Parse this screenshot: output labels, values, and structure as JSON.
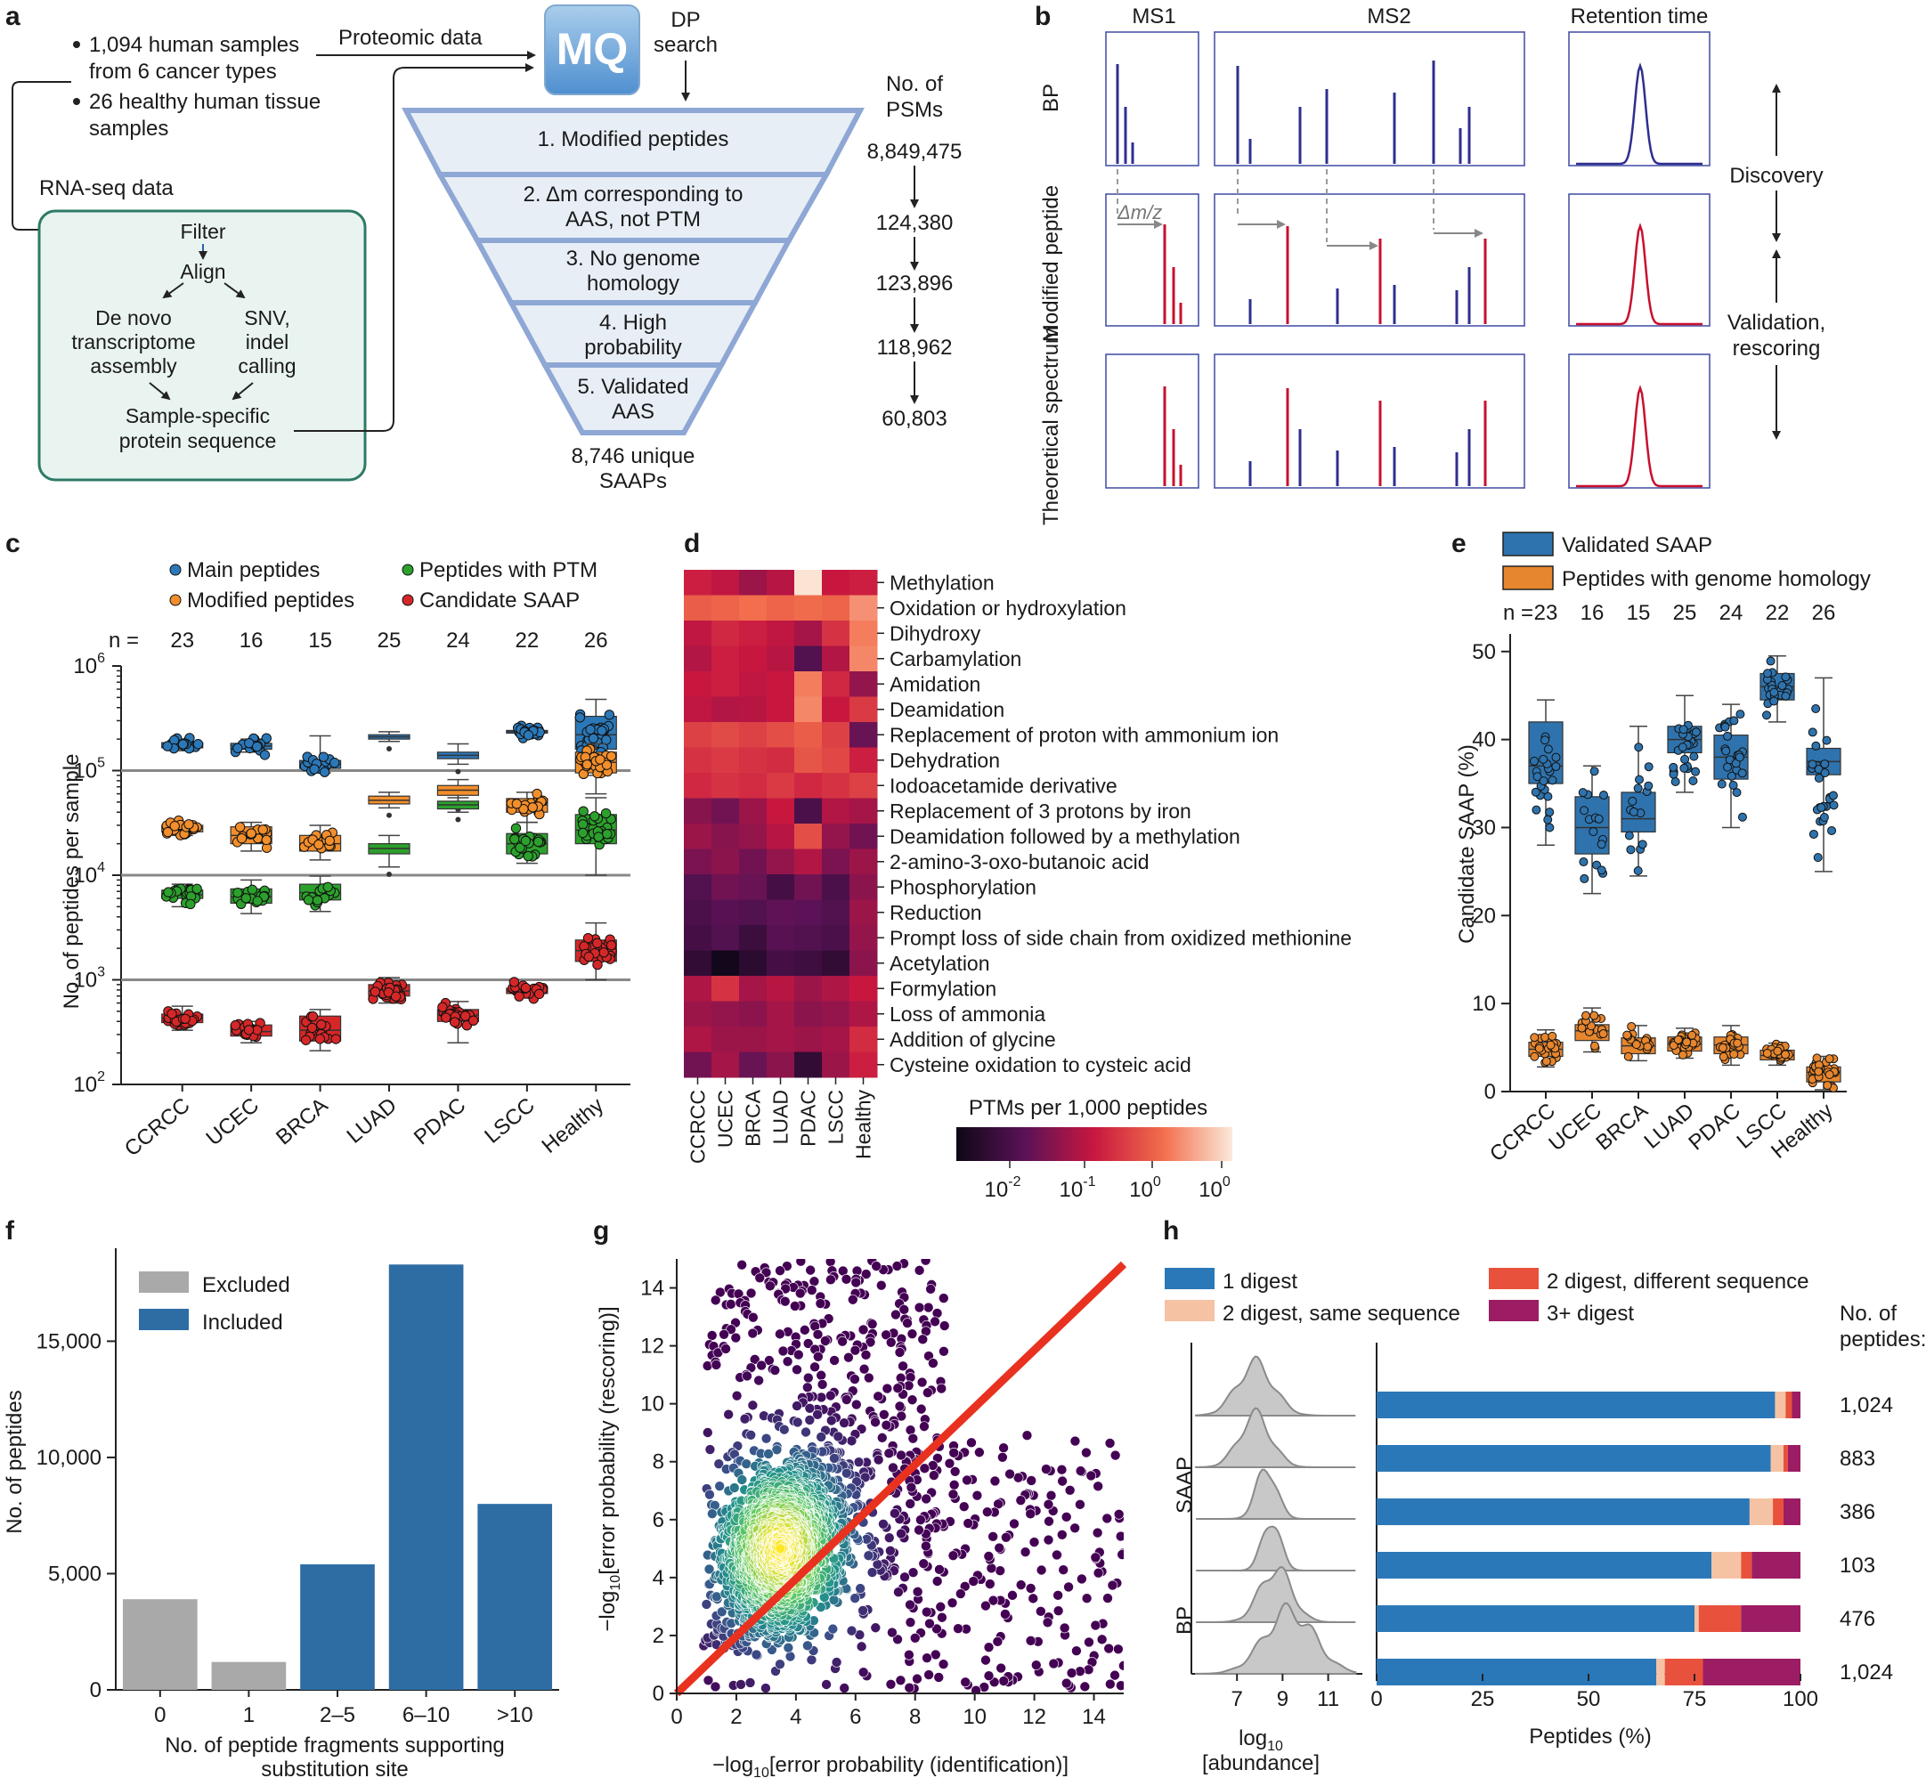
{
  "panel_letters": [
    "a",
    "b",
    "c",
    "d",
    "e",
    "f",
    "g",
    "h"
  ],
  "a": {
    "bullets": [
      "1,094 human samples",
      "from 6 cancer types",
      "26 healthy human tissue",
      "samples"
    ],
    "proteomic": "Proteomic data",
    "rnaseq": "RNA-seq data",
    "mq": "MQ",
    "dp": [
      "DP",
      "search"
    ],
    "pipeline": [
      "Filter",
      "Align",
      "De novo",
      "transcriptome",
      "assembly",
      "SNV,",
      "indel",
      "calling",
      "Sample-specific",
      "protein sequence"
    ],
    "psm_header": [
      "No. of",
      "PSMs"
    ],
    "funnel": [
      "1. Modified peptides",
      "2. Δm corresponding to",
      "AAS, not PTM",
      "3. No genome",
      "homology",
      "4. High",
      "probability",
      "5. Validated",
      "AAS"
    ],
    "psm_counts": [
      "8,849,475",
      "124,380",
      "123,896",
      "118,962",
      "60,803"
    ],
    "bottom": [
      "8,746 unique",
      "SAAPs"
    ]
  },
  "b": {
    "cols": [
      "MS1",
      "MS2",
      "Retention time"
    ],
    "rows": [
      "BP",
      "Modified peptide",
      "Theoretical spectrum"
    ],
    "dmz": "Δm/z",
    "side": [
      "Discovery",
      "Validation,",
      "rescoring"
    ],
    "colors": {
      "blue": "#2e2f8f",
      "red": "#c8102e",
      "frame": "#4a55a8"
    }
  },
  "chart_data": [
    {
      "id": "c",
      "type": "box",
      "legend": [
        {
          "name": "Main peptides",
          "color": "#2b78b8"
        },
        {
          "name": "Peptides with PTM",
          "color": "#2ca02c"
        },
        {
          "name": "Modified peptides",
          "color": "#f28e2b"
        },
        {
          "name": "Candidate SAAP",
          "color": "#d62728"
        }
      ],
      "categories": [
        "CCRCC",
        "UCEC",
        "BRCA",
        "LUAD",
        "PDAC",
        "LSCC",
        "Healthy"
      ],
      "n": [
        "23",
        "16",
        "15",
        "25",
        "24",
        "22",
        "26"
      ],
      "n_label": "n =",
      "ylabel": "No. of peptides per sample",
      "yscale": "log",
      "ylim": [
        100,
        1000000
      ],
      "yticks": [
        "2",
        "3",
        "4",
        "5",
        "6"
      ],
      "hlines": [
        1000,
        10000,
        100000
      ],
      "series": [
        {
          "color": "#2b78b8",
          "med": [
            175000,
            172000,
            115000,
            210000,
            140000,
            235000,
            220000
          ],
          "q1": [
            165000,
            160000,
            105000,
            200000,
            130000,
            228000,
            160000
          ],
          "q3": [
            185000,
            182000,
            125000,
            220000,
            150000,
            242000,
            330000
          ],
          "lo": [
            155000,
            150000,
            95000,
            190000,
            115000,
            218000,
            90000
          ],
          "hi": [
            195000,
            200000,
            215000,
            235000,
            180000,
            250000,
            480000
          ],
          "dots": [
            1,
            1,
            1,
            0,
            0,
            1,
            1
          ]
        },
        {
          "color": "#f28e2b",
          "med": [
            28000,
            24000,
            20000,
            52000,
            65000,
            47000,
            120000
          ],
          "q1": [
            26000,
            20000,
            17000,
            48000,
            58000,
            40000,
            95000
          ],
          "q3": [
            30000,
            29000,
            24000,
            57000,
            72000,
            54000,
            150000
          ],
          "lo": [
            24000,
            17000,
            14000,
            44000,
            50000,
            32000,
            60000
          ],
          "hi": [
            32000,
            32000,
            30000,
            62000,
            82000,
            62000,
            180000
          ],
          "dots": [
            1,
            1,
            1,
            0,
            0,
            1,
            1
          ]
        },
        {
          "color": "#2ca02c",
          "med": [
            6500,
            6200,
            6800,
            18000,
            47000,
            20000,
            27000
          ],
          "q1": [
            6000,
            5400,
            5800,
            16000,
            43000,
            16000,
            20000
          ],
          "q3": [
            7200,
            7400,
            8200,
            20000,
            51000,
            25000,
            38000
          ],
          "lo": [
            5000,
            4300,
            4500,
            12000,
            40000,
            13000,
            10000
          ],
          "hi": [
            8200,
            9000,
            9800,
            24000,
            55000,
            32000,
            55000
          ],
          "dots": [
            1,
            1,
            1,
            0,
            0,
            1,
            1
          ]
        },
        {
          "color": "#d62728",
          "med": [
            430,
            320,
            330,
            780,
            460,
            780,
            1900
          ],
          "q1": [
            390,
            290,
            260,
            700,
            400,
            740,
            1500
          ],
          "q3": [
            470,
            370,
            450,
            900,
            520,
            830,
            2400
          ],
          "lo": [
            330,
            250,
            210,
            600,
            250,
            700,
            1000
          ],
          "hi": [
            560,
            400,
            520,
            1050,
            620,
            880,
            3500
          ],
          "dots": [
            1,
            1,
            1,
            1,
            1,
            1,
            1
          ]
        }
      ]
    },
    {
      "id": "d",
      "type": "heatmap",
      "categories": [
        "CCRCC",
        "UCEC",
        "BRCA",
        "LUAD",
        "PDAC",
        "LSCC",
        "Healthy"
      ],
      "rows": [
        "Methylation",
        "Oxidation or hydroxylation",
        "Dihydroxy",
        "Carbamylation",
        "Amidation",
        "Deamidation",
        "Replacement of proton with ammonium ion",
        "Dehydration",
        "Iodoacetamide derivative",
        "Replacement of 3 protons by iron",
        "Deamidation followed by a methylation",
        "2-amino-3-oxo-butanoic acid",
        "Phosphorylation",
        "Reduction",
        "Prompt loss of side chain from oxidized methionine",
        "Acetylation",
        "Formylation",
        "Loss of ammonia",
        "Addition of glycine",
        "Cysteine oxidation to cysteic acid"
      ],
      "values": [
        [
          0.52,
          0.48,
          0.4,
          0.46,
          0.99,
          0.5,
          0.52
        ],
        [
          0.7,
          0.72,
          0.75,
          0.72,
          0.74,
          0.72,
          0.82
        ],
        [
          0.48,
          0.55,
          0.52,
          0.48,
          0.42,
          0.58,
          0.78
        ],
        [
          0.45,
          0.52,
          0.5,
          0.46,
          0.22,
          0.45,
          0.8
        ],
        [
          0.5,
          0.52,
          0.48,
          0.5,
          0.78,
          0.55,
          0.38
        ],
        [
          0.48,
          0.45,
          0.46,
          0.5,
          0.8,
          0.5,
          0.6
        ],
        [
          0.62,
          0.65,
          0.62,
          0.66,
          0.7,
          0.62,
          0.28
        ],
        [
          0.58,
          0.6,
          0.58,
          0.56,
          0.68,
          0.64,
          0.52
        ],
        [
          0.55,
          0.58,
          0.56,
          0.6,
          0.55,
          0.58,
          0.62
        ],
        [
          0.35,
          0.3,
          0.4,
          0.5,
          0.2,
          0.45,
          0.42
        ],
        [
          0.4,
          0.35,
          0.38,
          0.46,
          0.66,
          0.38,
          0.3
        ],
        [
          0.32,
          0.36,
          0.3,
          0.38,
          0.45,
          0.32,
          0.4
        ],
        [
          0.22,
          0.3,
          0.28,
          0.18,
          0.3,
          0.2,
          0.36
        ],
        [
          0.2,
          0.24,
          0.22,
          0.26,
          0.25,
          0.22,
          0.4
        ],
        [
          0.18,
          0.22,
          0.15,
          0.24,
          0.22,
          0.2,
          0.38
        ],
        [
          0.12,
          0.02,
          0.1,
          0.18,
          0.16,
          0.12,
          0.36
        ],
        [
          0.44,
          0.58,
          0.42,
          0.46,
          0.4,
          0.44,
          0.5
        ],
        [
          0.4,
          0.38,
          0.36,
          0.42,
          0.36,
          0.38,
          0.44
        ],
        [
          0.44,
          0.4,
          0.4,
          0.42,
          0.4,
          0.42,
          0.56
        ],
        [
          0.3,
          0.42,
          0.28,
          0.36,
          0.12,
          0.4,
          0.52
        ]
      ],
      "colorbar_label": "PTMs per 1,000 peptides",
      "colorbar_ticks": [
        "-2",
        "-1",
        "0",
        "0"
      ]
    },
    {
      "id": "e",
      "type": "box",
      "legend": [
        {
          "name": "Validated SAAP",
          "color": "#2e73ad"
        },
        {
          "name": "Peptides with genome homology",
          "color": "#e6862e"
        }
      ],
      "categories": [
        "CCRCC",
        "UCEC",
        "BRCA",
        "LUAD",
        "PDAC",
        "LSCC",
        "Healthy"
      ],
      "n": [
        "23",
        "16",
        "15",
        "25",
        "24",
        "22",
        "26"
      ],
      "n_label": "n =",
      "ylabel": "Candidate SAAP (%)",
      "ylim": [
        0,
        52
      ],
      "yticks": [
        0,
        10,
        20,
        30,
        40,
        50
      ],
      "series": [
        {
          "color": "#2e73ad",
          "med": [
            37,
            30,
            31,
            40,
            38,
            46,
            37.5
          ],
          "q1": [
            35,
            27,
            29.5,
            38.5,
            35.5,
            44.5,
            36
          ],
          "q3": [
            42,
            33.5,
            34,
            41.5,
            40.5,
            47.5,
            39
          ],
          "lo": [
            28,
            22.5,
            24.5,
            34,
            30,
            42,
            25
          ],
          "hi": [
            44.5,
            37,
            41.5,
            45,
            44,
            49.5,
            47
          ]
        },
        {
          "color": "#e6862e",
          "med": [
            4.8,
            6.9,
            5.2,
            5.4,
            5.3,
            4.1,
            2.2
          ],
          "q1": [
            4,
            5.8,
            4.3,
            4.6,
            4.3,
            3.6,
            1.1
          ],
          "q3": [
            5.6,
            7.6,
            6.1,
            6.2,
            6.2,
            4.7,
            2.8
          ],
          "lo": [
            2.8,
            4.5,
            3.5,
            3.8,
            3,
            3,
            0.2
          ],
          "hi": [
            7,
            9.5,
            7.5,
            7.2,
            7.5,
            5.5,
            4
          ]
        }
      ]
    },
    {
      "id": "f",
      "type": "bar",
      "categories": [
        "0",
        "1",
        "2–5",
        "6–10",
        ">10"
      ],
      "values": [
        3900,
        1200,
        5400,
        18300,
        8000
      ],
      "status": [
        "Excluded",
        "Excluded",
        "Included",
        "Included",
        "Included"
      ],
      "legend": [
        {
          "name": "Excluded",
          "color": "#a9a9a9"
        },
        {
          "name": "Included",
          "color": "#2e6da4"
        }
      ],
      "xlabel": [
        "No. of peptide fragments supporting",
        "substitution site"
      ],
      "ylabel": "No. of peptides",
      "ylim": [
        0,
        19000
      ],
      "yticks": [
        0,
        5000,
        10000,
        15000
      ],
      "ytick_labels": [
        "0",
        "5,000",
        "10,000",
        "15,000"
      ]
    },
    {
      "id": "g",
      "type": "scatter",
      "xlabel_parts": [
        "−log",
        "10",
        "[error probability (identification)]"
      ],
      "ylabel_parts": [
        "−log",
        "10",
        "[error probability (rescoring)]"
      ],
      "xlim": [
        0,
        15
      ],
      "ylim": [
        0,
        15
      ],
      "xticks": [
        0,
        2,
        4,
        6,
        8,
        10,
        12,
        14
      ],
      "yticks": [
        0,
        2,
        4,
        6,
        8,
        10,
        12,
        14
      ],
      "density_center": [
        3.5,
        5.0
      ],
      "diagonal": [
        [
          0,
          0
        ],
        [
          15,
          15
        ]
      ],
      "diagonal_color": "#e8321f"
    },
    {
      "id": "h",
      "type": "bar",
      "orientation": "horizontal",
      "stacked": true,
      "legend": [
        {
          "name": "1 digest",
          "color": "#2b78b8"
        },
        {
          "name": "2 digest, different sequence",
          "color": "#e8523c"
        },
        {
          "name": "2 digest, same sequence",
          "color": "#f6c2a4"
        },
        {
          "name": "3+ digest",
          "color": "#9c1d63"
        }
      ],
      "rows": [
        {
          "one": 94,
          "same": 2.5,
          "diff": 1.5,
          "more": 2,
          "count": "1,024",
          "group": "SAAP"
        },
        {
          "one": 93,
          "same": 3,
          "diff": 1,
          "more": 3,
          "count": "883",
          "group": "SAAP"
        },
        {
          "one": 88,
          "same": 5.5,
          "diff": 2.5,
          "more": 4,
          "count": "386",
          "group": "SAAP"
        },
        {
          "one": 79,
          "same": 7,
          "diff": 2.5,
          "more": 11.5,
          "count": "103",
          "group": "SAAP"
        },
        {
          "one": 75,
          "same": 1,
          "diff": 10,
          "more": 14,
          "count": "476",
          "group": "BP"
        },
        {
          "one": 66,
          "same": 2,
          "diff": 9,
          "more": 23,
          "count": "1,024",
          "group": "BP"
        }
      ],
      "count_header": [
        "No. of",
        "peptides:"
      ],
      "xlabel": "Peptides (%)",
      "xticks": [
        0,
        25,
        50,
        75,
        100
      ],
      "ridge_peaks": [
        7.8,
        7.8,
        8.3,
        8.5,
        8.7,
        9.3
      ],
      "ridge_xlabel_parts": [
        "log",
        "10",
        "[abundance]"
      ],
      "ridge_xticks": [
        7,
        9,
        11
      ],
      "group_labels": [
        "SAAP",
        "BP"
      ]
    }
  ]
}
